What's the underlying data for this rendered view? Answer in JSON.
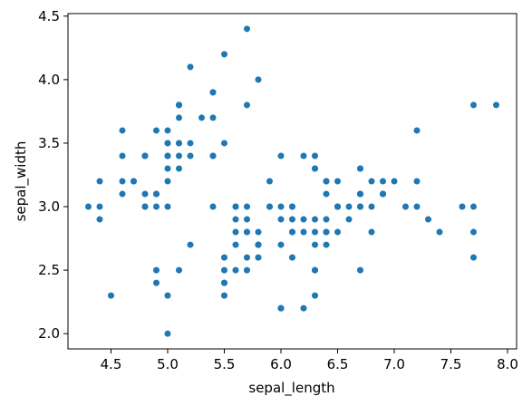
{
  "chart_data": {
    "type": "scatter",
    "color": "#1f77b4",
    "xlabel": "sepal_length",
    "ylabel": "sepal_width",
    "xlim": [
      4.12,
      8.08
    ],
    "ylim": [
      1.88,
      4.52
    ],
    "xticks": [
      4.5,
      {
        "value": 5,
        "label": "5.0"
      },
      5.5,
      {
        "value": 6,
        "label": "6.0"
      },
      6.5,
      {
        "value": 7,
        "label": "7.0"
      },
      7.5,
      {
        "value": 8,
        "label": "8.0"
      }
    ],
    "yticks": [
      {
        "value": 2,
        "label": "2.0"
      },
      2.5,
      {
        "value": 3,
        "label": "3.0"
      },
      3.5,
      {
        "value": 4,
        "label": "4.0"
      },
      4.5
    ],
    "x": [
      5.1,
      4.9,
      4.7,
      4.6,
      5.0,
      5.4,
      4.6,
      5.0,
      4.4,
      4.9,
      5.4,
      4.8,
      4.8,
      4.3,
      5.8,
      5.7,
      5.4,
      5.1,
      5.7,
      5.1,
      5.4,
      5.1,
      4.6,
      5.1,
      4.8,
      5.0,
      5.0,
      5.2,
      5.2,
      4.7,
      4.8,
      5.4,
      5.2,
      5.5,
      4.9,
      5.0,
      5.5,
      4.9,
      4.4,
      5.1,
      5.0,
      4.5,
      4.4,
      5.0,
      5.1,
      4.8,
      5.1,
      4.6,
      5.3,
      5.0,
      7.0,
      6.4,
      6.9,
      5.5,
      6.5,
      5.7,
      6.3,
      4.9,
      6.6,
      5.2,
      5.0,
      5.9,
      6.0,
      6.1,
      5.6,
      6.7,
      5.6,
      5.8,
      6.2,
      5.6,
      5.9,
      6.1,
      6.3,
      6.1,
      6.4,
      6.6,
      6.8,
      6.7,
      6.0,
      5.7,
      5.5,
      5.5,
      5.8,
      6.0,
      5.4,
      6.0,
      6.7,
      6.3,
      5.6,
      5.5,
      5.5,
      6.1,
      5.8,
      5.0,
      5.6,
      5.7,
      5.7,
      6.2,
      5.1,
      5.7,
      6.3,
      5.8,
      7.1,
      6.3,
      6.5,
      7.6,
      4.9,
      7.3,
      6.7,
      7.2,
      6.5,
      6.4,
      6.8,
      5.7,
      5.8,
      6.4,
      6.5,
      7.7,
      7.7,
      6.0,
      6.9,
      5.6,
      7.7,
      6.3,
      6.7,
      7.2,
      6.2,
      6.1,
      6.4,
      7.2,
      7.4,
      7.9,
      6.4,
      6.3,
      6.1,
      7.7,
      6.3,
      6.4,
      6.0,
      6.9,
      6.7,
      6.9,
      5.8,
      6.8,
      6.7,
      6.7,
      6.3,
      6.5,
      6.2,
      5.9
    ],
    "values": [
      3.5,
      3.0,
      3.2,
      3.1,
      3.6,
      3.9,
      3.4,
      3.4,
      2.9,
      3.1,
      3.7,
      3.4,
      3.0,
      3.0,
      4.0,
      4.4,
      3.9,
      3.5,
      3.8,
      3.8,
      3.4,
      3.7,
      3.6,
      3.3,
      3.4,
      3.0,
      3.4,
      3.5,
      3.4,
      3.2,
      3.1,
      3.4,
      4.1,
      4.2,
      3.1,
      3.2,
      3.5,
      3.6,
      3.0,
      3.4,
      3.5,
      2.3,
      3.2,
      3.5,
      3.8,
      3.0,
      3.8,
      3.2,
      3.7,
      3.3,
      3.2,
      3.2,
      3.1,
      2.3,
      2.8,
      2.8,
      3.3,
      2.4,
      2.9,
      2.7,
      2.0,
      3.0,
      2.2,
      2.9,
      2.9,
      3.1,
      3.0,
      2.7,
      2.2,
      2.5,
      3.2,
      2.8,
      2.5,
      2.8,
      2.9,
      3.0,
      2.8,
      3.0,
      2.9,
      2.6,
      2.4,
      2.4,
      2.7,
      2.7,
      3.0,
      3.4,
      3.1,
      2.3,
      3.0,
      2.5,
      2.6,
      3.0,
      2.6,
      2.3,
      2.7,
      3.0,
      2.9,
      2.9,
      2.5,
      2.8,
      3.3,
      2.7,
      3.0,
      2.9,
      3.0,
      3.0,
      2.5,
      2.9,
      2.5,
      3.6,
      3.2,
      2.7,
      3.0,
      2.5,
      2.8,
      3.2,
      3.0,
      3.8,
      2.6,
      2.2,
      3.2,
      2.8,
      2.8,
      2.7,
      3.3,
      3.2,
      2.8,
      3.0,
      2.8,
      3.0,
      2.8,
      3.8,
      2.8,
      2.8,
      2.6,
      3.0,
      3.4,
      3.1,
      3.0,
      3.1,
      3.1,
      3.1,
      2.7,
      3.2,
      3.3,
      3.0,
      2.5,
      3.0,
      3.4,
      3.0
    ]
  }
}
